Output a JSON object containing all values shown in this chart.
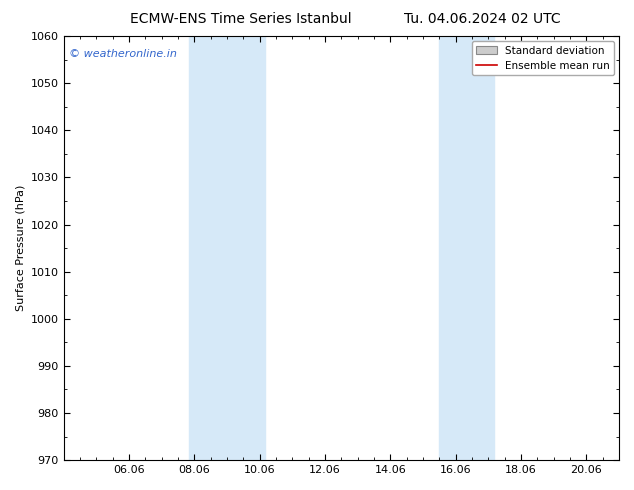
{
  "title": "ECMW-ENS Time Series Istanbul",
  "title_right": "Tu. 04.06.2024 02 UTC",
  "ylabel": "Surface Pressure (hPa)",
  "ylim": [
    970,
    1060
  ],
  "yticks": [
    970,
    980,
    990,
    1000,
    1010,
    1020,
    1030,
    1040,
    1050,
    1060
  ],
  "xlim_start": 4.0,
  "xlim_end": 21.0,
  "xtick_positions": [
    6.0,
    8.0,
    10.0,
    12.0,
    14.0,
    16.0,
    18.0,
    20.0
  ],
  "xtick_labels": [
    "06.06",
    "08.06",
    "10.06",
    "12.06",
    "14.06",
    "16.06",
    "18.06",
    "20.06"
  ],
  "shaded_bands": [
    {
      "x_start": 7.83,
      "x_end": 10.17
    },
    {
      "x_start": 15.5,
      "x_end": 17.17
    }
  ],
  "shade_color": "#d6e9f8",
  "watermark_text": "© weatheronline.in",
  "watermark_color": "#3366cc",
  "legend_std_dev_label": "Standard deviation",
  "legend_mean_label": "Ensemble mean run",
  "legend_std_color": "#cccccc",
  "legend_mean_color": "#cc0000",
  "bg_color": "#ffffff",
  "title_fontsize": 10,
  "axis_label_fontsize": 8,
  "tick_fontsize": 8,
  "watermark_fontsize": 8,
  "legend_fontsize": 7.5
}
